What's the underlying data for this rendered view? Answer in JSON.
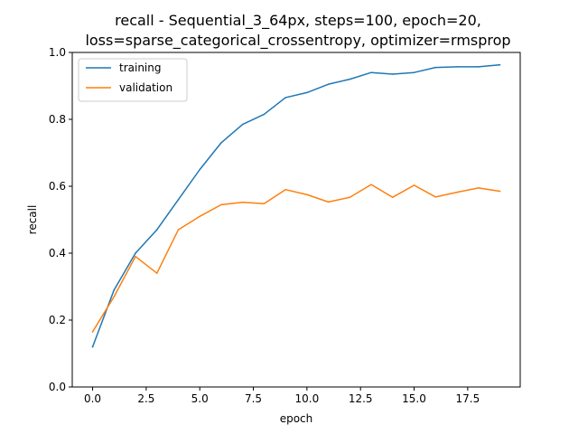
{
  "chart_data": {
    "type": "line",
    "title_lines": [
      "recall - Sequential_3_64px, steps=100, epoch=20,",
      "loss=sparse_categorical_crossentropy, optimizer=rmsprop"
    ],
    "xlabel": "epoch",
    "ylabel": "recall",
    "xlim": [
      -0.95,
      19.95
    ],
    "ylim": [
      0.0,
      1.0
    ],
    "xticks": [
      0.0,
      2.5,
      5.0,
      7.5,
      10.0,
      12.5,
      15.0,
      17.5
    ],
    "xtick_labels": [
      "0.0",
      "2.5",
      "5.0",
      "7.5",
      "10.0",
      "12.5",
      "15.0",
      "17.5"
    ],
    "yticks": [
      0.0,
      0.2,
      0.4,
      0.6,
      0.8,
      1.0
    ],
    "ytick_labels": [
      "0.0",
      "0.2",
      "0.4",
      "0.6",
      "0.8",
      "1.0"
    ],
    "grid": false,
    "legend_position": "top-left",
    "x": [
      0,
      1,
      2,
      3,
      4,
      5,
      6,
      7,
      8,
      9,
      10,
      11,
      12,
      13,
      14,
      15,
      16,
      17,
      18,
      19
    ],
    "series": [
      {
        "name": "training",
        "color": "#1f77b4",
        "values": [
          0.12,
          0.29,
          0.4,
          0.47,
          0.56,
          0.65,
          0.73,
          0.785,
          0.815,
          0.865,
          0.88,
          0.905,
          0.92,
          0.94,
          0.935,
          0.94,
          0.955,
          0.957,
          0.957,
          0.963
        ]
      },
      {
        "name": "validation",
        "color": "#ff7f0e",
        "values": [
          0.165,
          0.27,
          0.39,
          0.34,
          0.47,
          0.51,
          0.545,
          0.552,
          0.548,
          0.59,
          0.575,
          0.553,
          0.567,
          0.605,
          0.567,
          0.603,
          0.568,
          0.582,
          0.595,
          0.585
        ]
      }
    ]
  }
}
